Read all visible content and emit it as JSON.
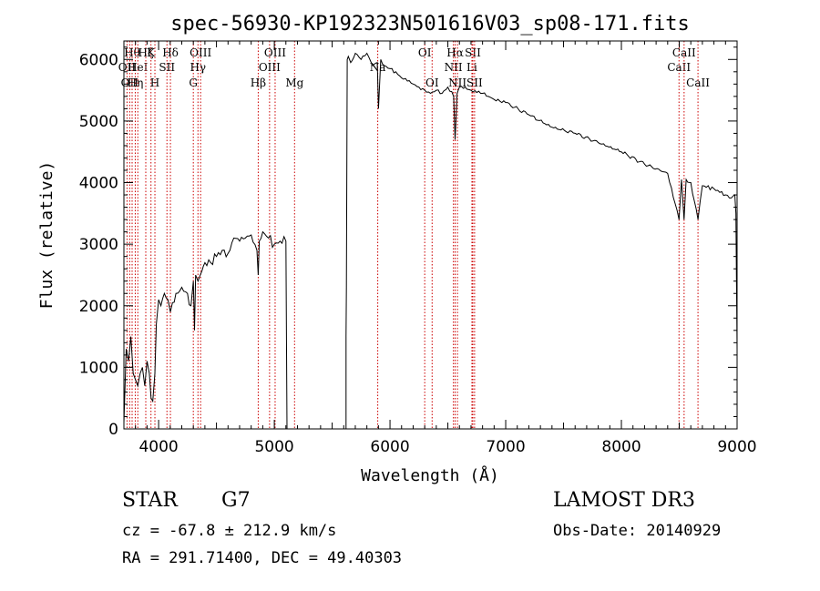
{
  "chart_data": {
    "type": "line",
    "title": "spec-56930-KP192323N501616V03_sp08-171.fits",
    "xlabel": "Wavelength (Å)",
    "ylabel": "Flux (relative)",
    "xlim": [
      3700,
      9000
    ],
    "ylim": [
      0,
      6300
    ],
    "xticks": [
      4000,
      5000,
      6000,
      7000,
      8000,
      9000
    ],
    "yticks": [
      0,
      1000,
      2000,
      3000,
      4000,
      5000,
      6000
    ],
    "grid": false,
    "series": [
      {
        "name": "spectrum",
        "segments": [
          {
            "x": [
              3700,
              3720,
              3740,
              3760,
              3780,
              3800,
              3820,
              3840,
              3860,
              3880,
              3900,
              3920,
              3935,
              3950,
              3968,
              3980,
              4000,
              4020,
              4050,
              4080,
              4102,
              4120,
              4150,
              4200,
              4250,
              4280,
              4300,
              4310,
              4320,
              4340,
              4360,
              4400,
              4450,
              4500,
              4550,
              4600,
              4650,
              4700,
              4750,
              4800,
              4850,
              4861,
              4870,
              4900,
              4950,
              5000,
              5050,
              5100,
              5110,
              5150
            ],
            "y": [
              100,
              1300,
              1100,
              1500,
              900,
              800,
              700,
              900,
              1000,
              700,
              1100,
              900,
              500,
              450,
              900,
              1700,
              2100,
              2000,
              2200,
              2100,
              1900,
              2050,
              2200,
              2300,
              2200,
              2000,
              2400,
              1600,
              2500,
              2400,
              2500,
              2700,
              2700,
              2800,
              2900,
              2850,
              3100,
              3050,
              3100,
              3150,
              2900,
              2500,
              3050,
              3200,
              3100,
              3000,
              3050,
              3050,
              0,
              0
            ]
          },
          {
            "x": [
              5620,
              5620,
              5623,
              5630,
              5640,
              5660,
              5700,
              5750,
              5800,
              5850,
              5890,
              5900,
              5920,
              5950,
              6000,
              6050,
              6100,
              6150,
              6200,
              6250,
              6300,
              6350,
              6400,
              6450,
              6500,
              6550,
              6563,
              6580,
              6600,
              6650,
              6700,
              6800,
              6900,
              7000,
              7200,
              7400,
              7600,
              7800,
              8000,
              8200,
              8400,
              8498,
              8520,
              8542,
              8560,
              8600,
              8662,
              8700,
              8800,
              8900,
              8950,
              8980,
              8990,
              9000
            ],
            "y": [
              0,
              1500,
              2300,
              6000,
              6050,
              5950,
              6100,
              6000,
              6100,
              5900,
              5950,
              5200,
              6000,
              5900,
              5850,
              5800,
              5700,
              5650,
              5600,
              5550,
              5500,
              5450,
              5500,
              5450,
              5550,
              5400,
              4700,
              5450,
              5550,
              5550,
              5500,
              5450,
              5350,
              5300,
              5100,
              4900,
              4800,
              4650,
              4500,
              4300,
              4150,
              3400,
              4050,
              3400,
              4050,
              4000,
              3400,
              3950,
              3900,
              3800,
              3750,
              3800,
              3500,
              1300
            ]
          }
        ]
      }
    ],
    "line_markers": [
      {
        "x": 3727,
        "labels": [
          "OII"
        ],
        "row": 2
      },
      {
        "x": 3750,
        "labels": [
          "OII"
        ],
        "row": 3
      },
      {
        "x": 3771,
        "labels": [
          "Hθ"
        ],
        "row": 1
      },
      {
        "x": 3798,
        "labels": [
          "Hη"
        ],
        "row": 3
      },
      {
        "x": 3820,
        "labels": [
          "HeI"
        ],
        "row": 2
      },
      {
        "x": 3889,
        "labels": [
          "Hζ"
        ],
        "row": 1
      },
      {
        "x": 3934,
        "labels": [
          "K"
        ],
        "row": 1
      },
      {
        "x": 3968,
        "labels": [
          "H"
        ],
        "row": 3
      },
      {
        "x": 4072,
        "labels": [
          "SII"
        ],
        "row": 2
      },
      {
        "x": 4102,
        "labels": [
          "Hδ"
        ],
        "row": 1
      },
      {
        "x": 4300,
        "labels": [
          "G"
        ],
        "row": 3
      },
      {
        "x": 4340,
        "labels": [
          "Hγ"
        ],
        "row": 2
      },
      {
        "x": 4363,
        "labels": [
          "OIII"
        ],
        "row": 1
      },
      {
        "x": 4861,
        "labels": [
          "Hβ"
        ],
        "row": 3
      },
      {
        "x": 4959,
        "labels": [
          "OIII"
        ],
        "row": 2
      },
      {
        "x": 5007,
        "labels": [
          "OIII"
        ],
        "row": 1
      },
      {
        "x": 5175,
        "labels": [
          "Mg"
        ],
        "row": 3
      },
      {
        "x": 5894,
        "labels": [
          "Na"
        ],
        "row": 2
      },
      {
        "x": 6300,
        "labels": [
          "OI"
        ],
        "row": 1
      },
      {
        "x": 6364,
        "labels": [
          "OI"
        ],
        "row": 3
      },
      {
        "x": 6548,
        "labels": [
          "NII"
        ],
        "row": 2
      },
      {
        "x": 6563,
        "labels": [
          "Hα"
        ],
        "row": 1
      },
      {
        "x": 6583,
        "labels": [
          "NII"
        ],
        "row": 3
      },
      {
        "x": 6708,
        "labels": [
          "Li"
        ],
        "row": 2
      },
      {
        "x": 6716,
        "labels": [
          "SII"
        ],
        "row": 1
      },
      {
        "x": 6731,
        "labels": [
          "SII"
        ],
        "row": 3
      },
      {
        "x": 8498,
        "labels": [
          "CaII"
        ],
        "row": 2
      },
      {
        "x": 8542,
        "labels": [
          "CaII"
        ],
        "row": 1
      },
      {
        "x": 8662,
        "labels": [
          "CaII"
        ],
        "row": 3
      }
    ],
    "line_colors": {
      "spectrum": "#000000",
      "markers": "#cc0000"
    }
  },
  "info": {
    "object_class": "STAR",
    "subclass": "G7",
    "survey": "LAMOST DR3",
    "redshift": "cz = -67.8 ± 212.9 km/s",
    "obs_date": "Obs-Date: 20140929",
    "coords": "RA = 291.71400, DEC =  49.40303"
  }
}
